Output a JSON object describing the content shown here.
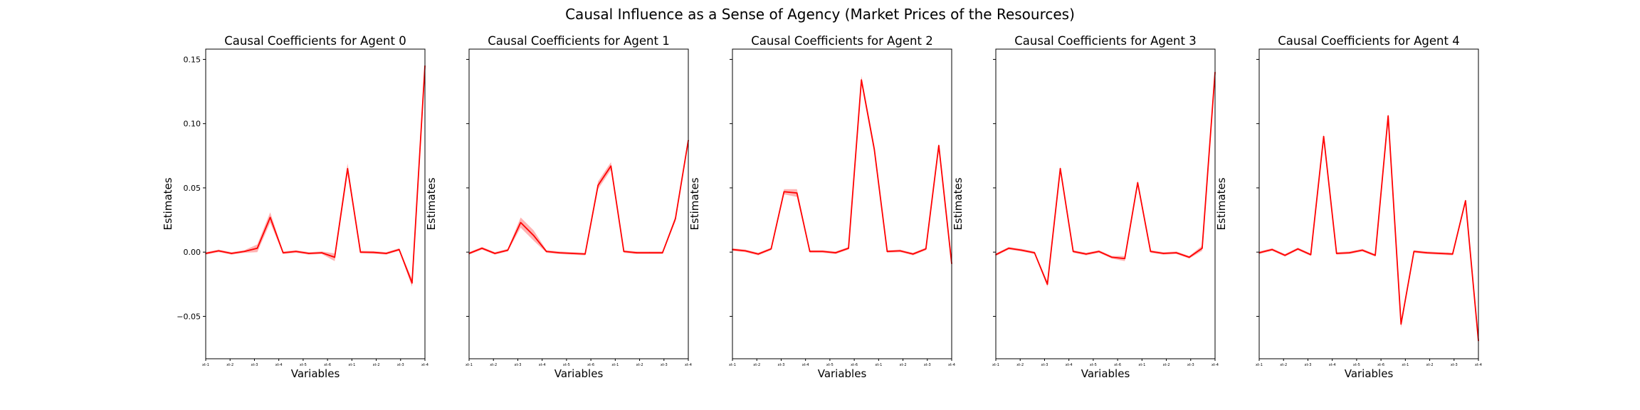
{
  "figure": {
    "suptitle": "Causal Influence as a Sense of Agency (Market Prices of the Resources)"
  },
  "style": {
    "line_color": "#ff0000",
    "band_color": "#ff8080"
  },
  "chart_data": [
    {
      "type": "line",
      "title": "Causal Coefficients for Agent 0",
      "xlabel": "Variables",
      "ylabel": "Estimates",
      "ylim": [
        -0.083,
        0.158
      ],
      "yticks": [
        "−0.05",
        "0.00",
        "0.05",
        "0.10",
        "0.15"
      ],
      "ytick_values": [
        -0.05,
        0,
        0.05,
        0.1,
        0.15
      ],
      "xticks": [
        "xt-1",
        "xt-2",
        "xt-3",
        "xt-4",
        "xt-5",
        "xt-6",
        "xt-1",
        "xt-2",
        "xt-3",
        "xt-4"
      ],
      "grid": false,
      "values": [
        -0.001,
        0.001,
        -0.001,
        0.0005,
        0.003,
        0.027,
        -0.0005,
        0.0005,
        -0.001,
        -0.0005,
        -0.004,
        0.065,
        0.0,
        -0.0002,
        -0.001,
        0.002,
        -0.024,
        0.145
      ],
      "band": [
        0.001,
        0.001,
        0.001,
        0.001,
        0.003,
        0.004,
        0.001,
        0.001,
        0.001,
        0.001,
        0.003,
        0.004,
        0.001,
        0.001,
        0.001,
        0.001,
        0.003,
        0.004
      ]
    },
    {
      "type": "line",
      "title": "Causal Coefficients for Agent 1",
      "xlabel": "Variables",
      "ylabel": "Estimates",
      "ylim": [
        -0.083,
        0.158
      ],
      "yticks": [
        "−0.05",
        "0.00",
        "0.05",
        "0.10",
        "0.15"
      ],
      "ytick_values": [
        -0.05,
        0,
        0.05,
        0.1,
        0.15
      ],
      "xticks": [
        "xt-1",
        "xt-2",
        "xt-3",
        "xt-4",
        "xt-5",
        "xt-6",
        "xt-1",
        "xt-2",
        "xt-3",
        "xt-4"
      ],
      "grid": false,
      "values": [
        -0.001,
        0.003,
        -0.001,
        0.0015,
        0.023,
        0.013,
        0.0005,
        -0.0005,
        -0.001,
        -0.0015,
        0.052,
        0.067,
        0.0005,
        -0.0005,
        -0.0005,
        -0.0005,
        0.026,
        0.087
      ],
      "band": [
        0.001,
        0.001,
        0.001,
        0.001,
        0.004,
        0.004,
        0.001,
        0.001,
        0.001,
        0.001,
        0.003,
        0.003,
        0.001,
        0.001,
        0.001,
        0.001,
        0.002,
        0.001
      ]
    },
    {
      "type": "line",
      "title": "Causal Coefficients for Agent 2",
      "xlabel": "Variables",
      "ylabel": "Estimates",
      "ylim": [
        -0.083,
        0.158
      ],
      "yticks": [
        "−0.05",
        "0.00",
        "0.05",
        "0.10",
        "0.15"
      ],
      "ytick_values": [
        -0.05,
        0,
        0.05,
        0.1,
        0.15
      ],
      "xticks": [
        "xt-1",
        "xt-2",
        "xt-3",
        "xt-4",
        "xt-5",
        "xt-6",
        "xt-1",
        "xt-2",
        "xt-3",
        "xt-4"
      ],
      "grid": false,
      "values": [
        0.002,
        0.001,
        -0.0015,
        0.0025,
        0.047,
        0.046,
        0.0005,
        0.0005,
        -0.0005,
        0.003,
        0.134,
        0.08,
        0.0005,
        0.001,
        -0.0015,
        0.0025,
        0.083,
        -0.009
      ],
      "band": [
        0.001,
        0.001,
        0.001,
        0.001,
        0.002,
        0.003,
        0.001,
        0.001,
        0.001,
        0.001,
        0.003,
        0.003,
        0.001,
        0.001,
        0.001,
        0.001,
        0.001,
        0.002
      ]
    },
    {
      "type": "line",
      "title": "Causal Coefficients for Agent 3",
      "xlabel": "Variables",
      "ylabel": "Estimates",
      "ylim": [
        -0.083,
        0.158
      ],
      "yticks": [
        "−0.05",
        "0.00",
        "0.05",
        "0.10",
        "0.15"
      ],
      "ytick_values": [
        -0.05,
        0,
        0.05,
        0.1,
        0.15
      ],
      "xticks": [
        "xt-1",
        "xt-2",
        "xt-3",
        "xt-4",
        "xt-5",
        "xt-6",
        "xt-1",
        "xt-2",
        "xt-3",
        "xt-4"
      ],
      "grid": false,
      "values": [
        -0.002,
        0.003,
        0.0015,
        -0.0005,
        -0.025,
        0.065,
        0.0005,
        -0.0015,
        0.0005,
        -0.004,
        -0.005,
        0.054,
        0.0005,
        -0.001,
        -0.0005,
        -0.004,
        0.003,
        0.14
      ],
      "band": [
        0.001,
        0.001,
        0.001,
        0.001,
        0.002,
        0.002,
        0.001,
        0.001,
        0.001,
        0.001,
        0.002,
        0.002,
        0.001,
        0.001,
        0.001,
        0.001,
        0.002,
        0.003
      ]
    },
    {
      "type": "line",
      "title": "Causal Coefficients for Agent 4",
      "xlabel": "Variables",
      "ylabel": "Estimates",
      "ylim": [
        -0.083,
        0.158
      ],
      "yticks": [
        "−0.05",
        "0.00",
        "0.05",
        "0.10",
        "0.15"
      ],
      "ytick_values": [
        -0.05,
        0,
        0.05,
        0.1,
        0.15
      ],
      "xticks": [
        "xt-1",
        "xt-2",
        "xt-3",
        "xt-4",
        "xt-5",
        "xt-6",
        "xt-1",
        "xt-2",
        "xt-3",
        "xt-4"
      ],
      "grid": false,
      "values": [
        -0.0005,
        0.002,
        -0.0025,
        0.0025,
        -0.002,
        0.09,
        -0.001,
        -0.0005,
        0.0015,
        -0.0025,
        0.106,
        -0.056,
        0.0005,
        -0.0005,
        -0.001,
        -0.0015,
        0.04,
        -0.069
      ],
      "band": [
        0.001,
        0.001,
        0.001,
        0.001,
        0.001,
        0.002,
        0.001,
        0.001,
        0.001,
        0.001,
        0.002,
        0.003,
        0.001,
        0.001,
        0.001,
        0.001,
        0.001,
        0.003
      ]
    }
  ]
}
